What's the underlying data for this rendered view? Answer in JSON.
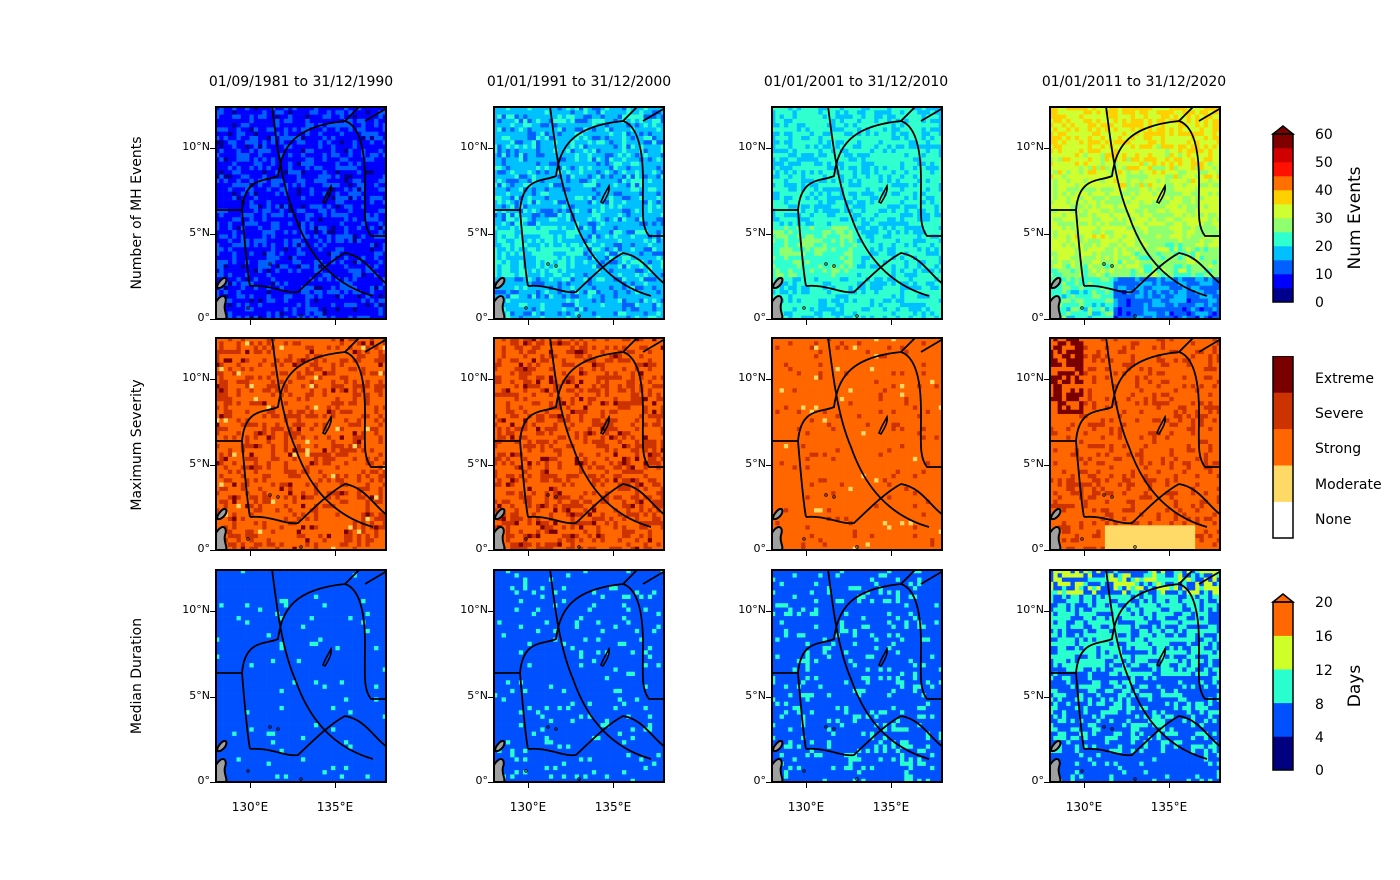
{
  "figure": {
    "column_titles": [
      "01/09/1981 to 31/12/1990",
      "01/01/1991 to 31/12/2000",
      "01/01/2001 to 31/12/2010",
      "01/01/2011 to 31/12/2020"
    ],
    "row_labels": [
      "Number of MH Events",
      "Maximum Severity",
      "Median Duration"
    ],
    "y_ticks": [
      "0°",
      "5°N",
      "10°N"
    ],
    "x_ticks": [
      "130°E",
      "135°E"
    ]
  },
  "colorbars": {
    "events": {
      "label": "Num Events",
      "ticks": [
        "0",
        "10",
        "20",
        "30",
        "40",
        "50",
        "60"
      ],
      "colors": [
        "#00008f",
        "#0000ff",
        "#0060ff",
        "#00c0ff",
        "#30ffcf",
        "#8fff70",
        "#cfff30",
        "#ffd000",
        "#ff7000",
        "#ff1000",
        "#d00000",
        "#800000"
      ]
    },
    "severity": {
      "categories": [
        "None",
        "Moderate",
        "Strong",
        "Severe",
        "Extreme"
      ],
      "colors": [
        "#ffffff",
        "#ffd966",
        "#ff6600",
        "#cc3300",
        "#7a0000"
      ]
    },
    "duration": {
      "label": "Days",
      "ticks": [
        "0",
        "4",
        "8",
        "12",
        "16",
        "20"
      ],
      "colors": [
        "#000080",
        "#0050ff",
        "#29ffce",
        "#ceff29",
        "#ff6800"
      ]
    }
  },
  "colors": {
    "land": "#a0a0a0",
    "coast": "#000000",
    "boundary": "#000000"
  }
}
